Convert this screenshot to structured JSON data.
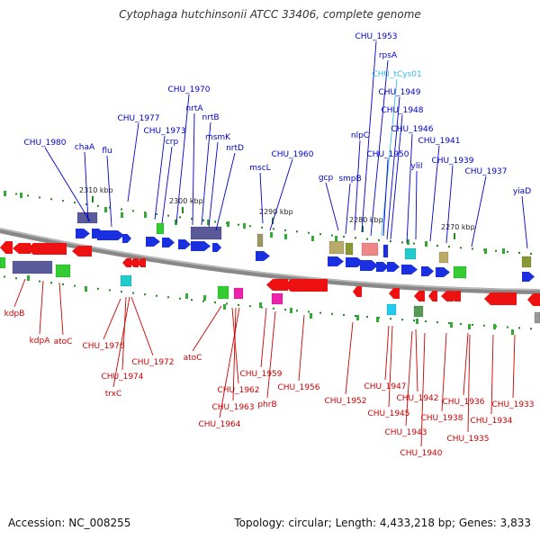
{
  "title": "Cytophaga hutchinsonii ATCC 33406, complete genome",
  "footer": {
    "accession": "Accession: NC_008255",
    "topology": "Topology: circular; Length: 4,433,218 bp; Genes: 3,833"
  },
  "colors": {
    "forward_label": "#0000cc",
    "reverse_label": "#cc0000",
    "trna_label": "#33bbee",
    "backbone": "#888888",
    "tick": "#228822"
  },
  "ruler_labels": [
    "2310 kbp",
    "2300 kbp",
    "2290 kbp",
    "2280 kbp",
    "2270 kbp"
  ],
  "forward_genes": [
    "CHU_1980",
    "chaA",
    "flu",
    "CHU_1977",
    "CHU_1973",
    "crp",
    "CHU_1970",
    "nrtA",
    "nrtB",
    "msmK",
    "nrtD",
    "mscL",
    "CHU_1960",
    "gcp",
    "smpB",
    "nlpC",
    "CHU_1953",
    "rpsA",
    "CHU_tCys01",
    "CHU_1949",
    "CHU_1948",
    "CHU_1950",
    "CHU_1946",
    "yliI",
    "CHU_1941",
    "CHU_1939",
    "CHU_1937",
    "yiaD"
  ],
  "reverse_genes": [
    "kdpB",
    "kdpA",
    "atoC",
    "CHU_1976",
    "CHU_1974",
    "trxC",
    "CHU_1972",
    "atoC",
    "CHU_1962",
    "CHU_1963",
    "CHU_1964",
    "CHU_1959",
    "phrB",
    "CHU_1956",
    "CHU_1952",
    "CHU_1947",
    "CHU_1945",
    "CHU_1942",
    "CHU_1943",
    "CHU_1940",
    "CHU_1938",
    "CHU_1936",
    "CHU_1934",
    "CHU_1935",
    "CHU_1933"
  ]
}
